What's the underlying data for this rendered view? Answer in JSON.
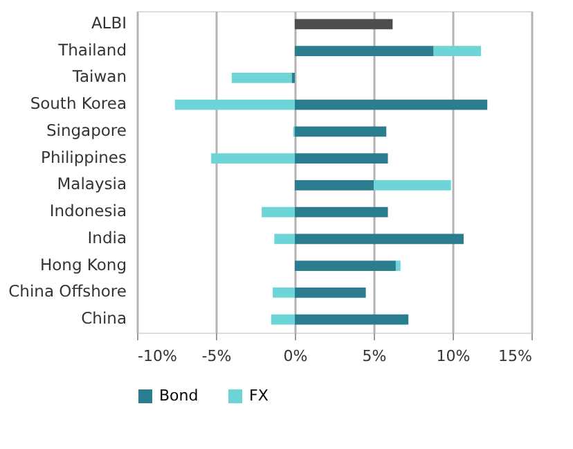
{
  "chart_data": {
    "type": "bar",
    "orientation": "horizontal",
    "stacked": true,
    "categories": [
      "ALBI",
      "Thailand",
      "Taiwan",
      "South Korea",
      "Singapore",
      "Philippines",
      "Malaysia",
      "Indonesia",
      "India",
      "Hong Kong",
      "China Offshore",
      "China"
    ],
    "series": [
      {
        "name": "Bond",
        "color": "#2a7d8e",
        "colors": [
          "#4d4d4d",
          "#2a7d8e",
          "#2a7d8e",
          "#2a7d8e",
          "#2a7d8e",
          "#2a7d8e",
          "#2a7d8e",
          "#2a7d8e",
          "#2a7d8e",
          "#2a7d8e",
          "#2a7d8e",
          "#2a7d8e"
        ],
        "values": [
          6.2,
          8.8,
          -0.2,
          12.2,
          5.8,
          5.9,
          5.0,
          5.9,
          10.7,
          6.4,
          4.5,
          7.2
        ]
      },
      {
        "name": "FX",
        "color": "#6dd5d8",
        "values": [
          null,
          3.0,
          -3.8,
          -7.6,
          -0.1,
          -5.3,
          4.9,
          -2.1,
          -1.3,
          0.3,
          -1.4,
          -1.5
        ]
      }
    ],
    "xlim": [
      -10,
      15
    ],
    "xticks": [
      {
        "value": -10,
        "label": "-10%"
      },
      {
        "value": -5,
        "label": "-5%"
      },
      {
        "value": 0,
        "label": "0%"
      },
      {
        "value": 5,
        "label": "5%"
      },
      {
        "value": 10,
        "label": "10%"
      },
      {
        "value": 15,
        "label": "15%"
      }
    ],
    "grid": "x",
    "legend": "bottom"
  }
}
